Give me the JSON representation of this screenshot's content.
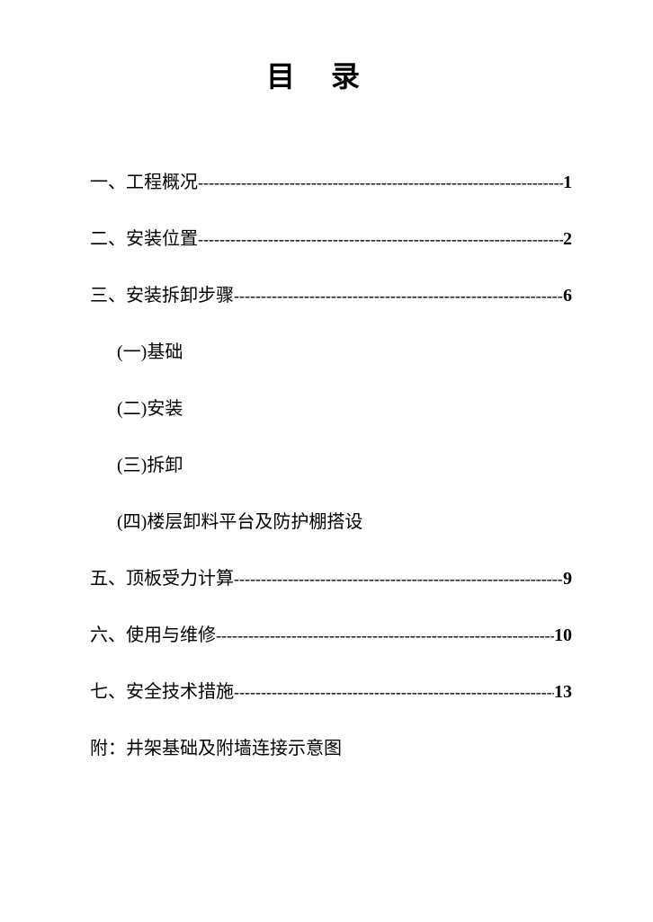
{
  "title": "目录",
  "toc": {
    "entries": [
      {
        "label": "一、工程概况",
        "page": "1",
        "type": "entry",
        "bold_page": true
      },
      {
        "label": "二、安装位置",
        "page": "2",
        "type": "entry",
        "bold_page": false
      },
      {
        "label": "三、安装拆卸步骤",
        "page": "6",
        "type": "entry",
        "bold_page": true
      },
      {
        "label": "(一)基础",
        "type": "sub"
      },
      {
        "label": "(二)安装",
        "type": "sub"
      },
      {
        "label": "(三)拆卸",
        "type": "sub"
      },
      {
        "label": "(四)楼层卸料平台及防护棚搭设",
        "type": "sub"
      },
      {
        "label": "五、顶板受力计算",
        "page": "9",
        "type": "entry",
        "bold_page": false
      },
      {
        "label": "六、使用与维修",
        "page": "10",
        "type": "entry",
        "bold_page": true
      },
      {
        "label": "七、安全技术措施",
        "page": "13",
        "type": "entry",
        "bold_page": false
      },
      {
        "label": "附：井架基础及附墙连接示意图",
        "type": "plain"
      }
    ]
  },
  "styles": {
    "title_fontsize": 32,
    "body_fontsize": 20,
    "text_color": "#000000",
    "background_color": "#ffffff",
    "leader_char": "-"
  }
}
